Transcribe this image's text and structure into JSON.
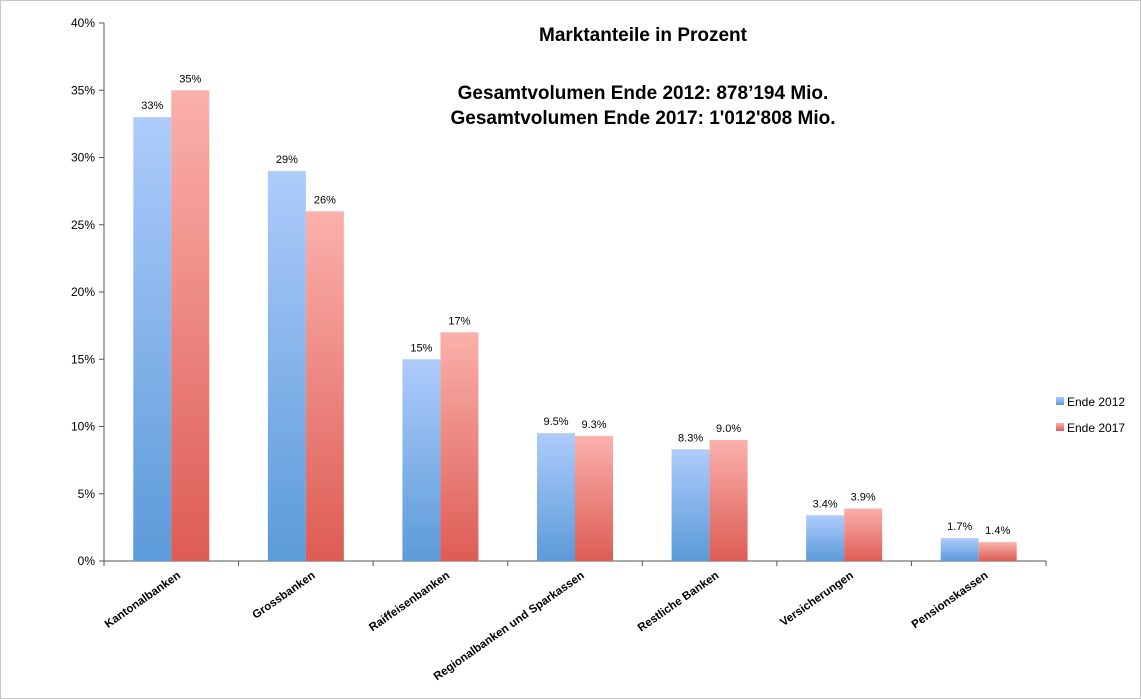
{
  "chart_data": {
    "type": "bar",
    "title": "Marktanteile in Prozent",
    "subtitle_lines": [
      "Gesamtvolumen Ende 2012:  878’194 Mio.",
      "Gesamtvolumen Ende 2017: 1'012'808 Mio."
    ],
    "xlabel": "",
    "ylabel": "",
    "ylim": [
      0,
      40
    ],
    "yticks": [
      "0%",
      "5%",
      "10%",
      "15%",
      "20%",
      "25%",
      "30%",
      "35%",
      "40%"
    ],
    "grid": false,
    "legend_position": "right",
    "categories": [
      "Kantonalbanken",
      "Grossbanken",
      "Raiffeisenbanken",
      "Regionalbanken und Sparkassen",
      "Restliche Banken",
      "Versicherungen",
      "Pensionskassen"
    ],
    "series": [
      {
        "name": "Ende 2012",
        "color": "#6fa3e8",
        "values": [
          33,
          29,
          15,
          9.5,
          8.3,
          3.4,
          1.7
        ],
        "labels": [
          "33%",
          "29%",
          "15%",
          "9.5%",
          "8.3%",
          "3.4%",
          "1.7%"
        ]
      },
      {
        "name": "Ende 2017",
        "color": "#ec8080",
        "values": [
          35,
          26,
          17,
          9.3,
          9.0,
          3.9,
          1.4
        ],
        "labels": [
          "35%",
          "26%",
          "17%",
          "9.3%",
          "9.0%",
          "3.9%",
          "1.4%"
        ]
      }
    ]
  }
}
